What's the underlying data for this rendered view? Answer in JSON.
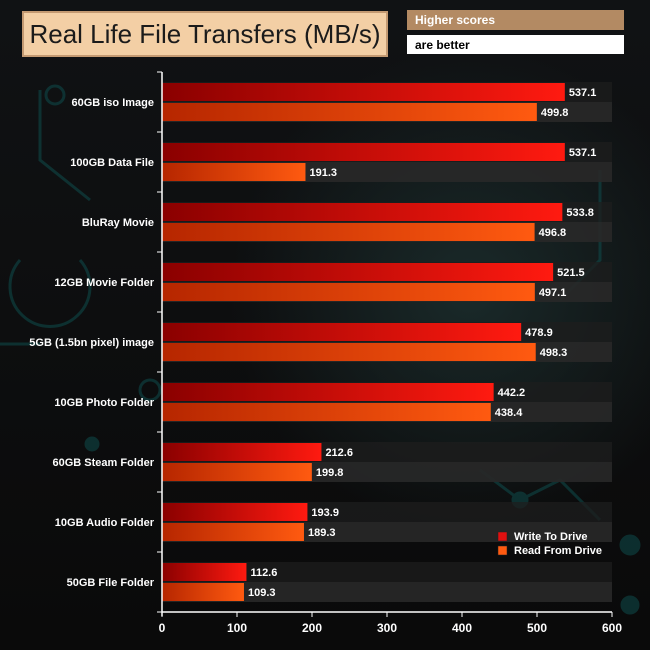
{
  "header": {
    "note_line_1": "Higher scores",
    "note_line_2": "are better"
  },
  "colors": {
    "write_dark": "#8a0000",
    "write_light": "#ff1a10",
    "read_dark": "#b62600",
    "read_light": "#ff5a10",
    "row_band": "#2a2a2a",
    "note_bg": "#b38a63",
    "title_bg": "#f3cfa5"
  },
  "chart_data": {
    "type": "bar",
    "orientation": "horizontal",
    "title": "Real Life File Transfers (MB/s)",
    "xlabel": "",
    "ylabel": "",
    "xlim": [
      0,
      600
    ],
    "ticks": [
      0,
      100,
      200,
      300,
      400,
      500,
      600
    ],
    "categories": [
      "60GB iso Image",
      "100GB Data File",
      "BluRay Movie",
      "12GB Movie Folder",
      "5GB (1.5bn pixel) image",
      "10GB Photo Folder",
      "60GB Steam Folder",
      "10GB Audio Folder",
      "50GB File Folder"
    ],
    "series": [
      {
        "name": "Write To  Drive",
        "values": [
          537.1,
          537.1,
          533.8,
          521.5,
          478.9,
          442.2,
          212.6,
          193.9,
          112.6
        ]
      },
      {
        "name": "Read From  Drive",
        "values": [
          499.8,
          191.3,
          496.8,
          497.1,
          498.3,
          438.4,
          199.8,
          189.3,
          109.3
        ]
      }
    ],
    "legend_position": "bottom-right"
  }
}
